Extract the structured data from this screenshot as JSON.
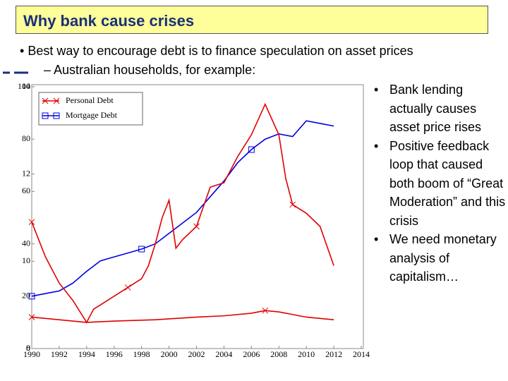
{
  "slide": {
    "title": "Why bank cause crises",
    "bullet": "Best way to encourage debt is to finance speculation on asset prices",
    "sub_bullet": "Australian households, for example:",
    "side_bullets": [
      "Bank lending actually causes asset price rises",
      "Positive feedback loop that caused both boom of “Great Moderation” and this crisis",
      "We need monetary analysis of capitalism…"
    ]
  },
  "chart_data": {
    "type": "line",
    "xlim": [
      1990,
      2014
    ],
    "xticks": [
      1990,
      1992,
      1994,
      1996,
      1998,
      2000,
      2002,
      2004,
      2006,
      2008,
      2010,
      2012,
      2014
    ],
    "ylim": [
      0,
      100
    ],
    "yticks": [
      0,
      20,
      40,
      60,
      80,
      100
    ],
    "y2lim": [
      8,
      14
    ],
    "y2ticks": [
      8,
      10,
      12,
      14
    ],
    "series": [
      {
        "name": "Personal Debt",
        "color": "#e00000",
        "marker": "x",
        "x": [
          1990,
          1992,
          1994,
          1996,
          1999,
          2002,
          2004,
          2006,
          2007,
          2008,
          2009,
          2010,
          2012
        ],
        "values": [
          12,
          11,
          10,
          10.5,
          11,
          12,
          12.5,
          13.5,
          14.5,
          14,
          13,
          12,
          11
        ]
      },
      {
        "name": "Mortgage Debt",
        "color": "#0000e0",
        "marker": "square",
        "x": [
          1990,
          1991,
          1992,
          1993,
          1994,
          1995,
          1996,
          1997,
          1998,
          1999,
          2000,
          2001,
          2002,
          2003,
          2004,
          2005,
          2006,
          2007,
          2008,
          2009,
          2010,
          2011,
          2012
        ],
        "values": [
          20,
          21,
          22,
          25,
          29.5,
          33.5,
          35,
          36.5,
          38,
          40,
          44,
          48,
          52,
          58,
          64,
          71,
          76,
          80,
          82,
          81,
          87,
          86,
          85
        ]
      },
      {
        "color": "#e00000",
        "marker": "x",
        "axis": "y2",
        "x": [
          1990,
          1991,
          1992,
          1993,
          1994,
          1994.5,
          1995,
          1996,
          1997,
          1998,
          1998.5,
          1999,
          1999.5,
          2000,
          2000.5,
          2001,
          2002,
          2003,
          2004,
          2005,
          2006,
          2007,
          2008,
          2008.5,
          2009,
          2010,
          2011,
          2012
        ],
        "values": [
          10.9,
          10.1,
          9.5,
          9.1,
          8.6,
          8.9,
          9.0,
          9.2,
          9.4,
          9.6,
          9.9,
          10.4,
          11.0,
          11.4,
          10.3,
          10.5,
          10.8,
          11.7,
          11.8,
          12.4,
          12.9,
          13.6,
          12.9,
          11.9,
          11.3,
          11.1,
          10.8,
          9.9
        ]
      }
    ]
  }
}
